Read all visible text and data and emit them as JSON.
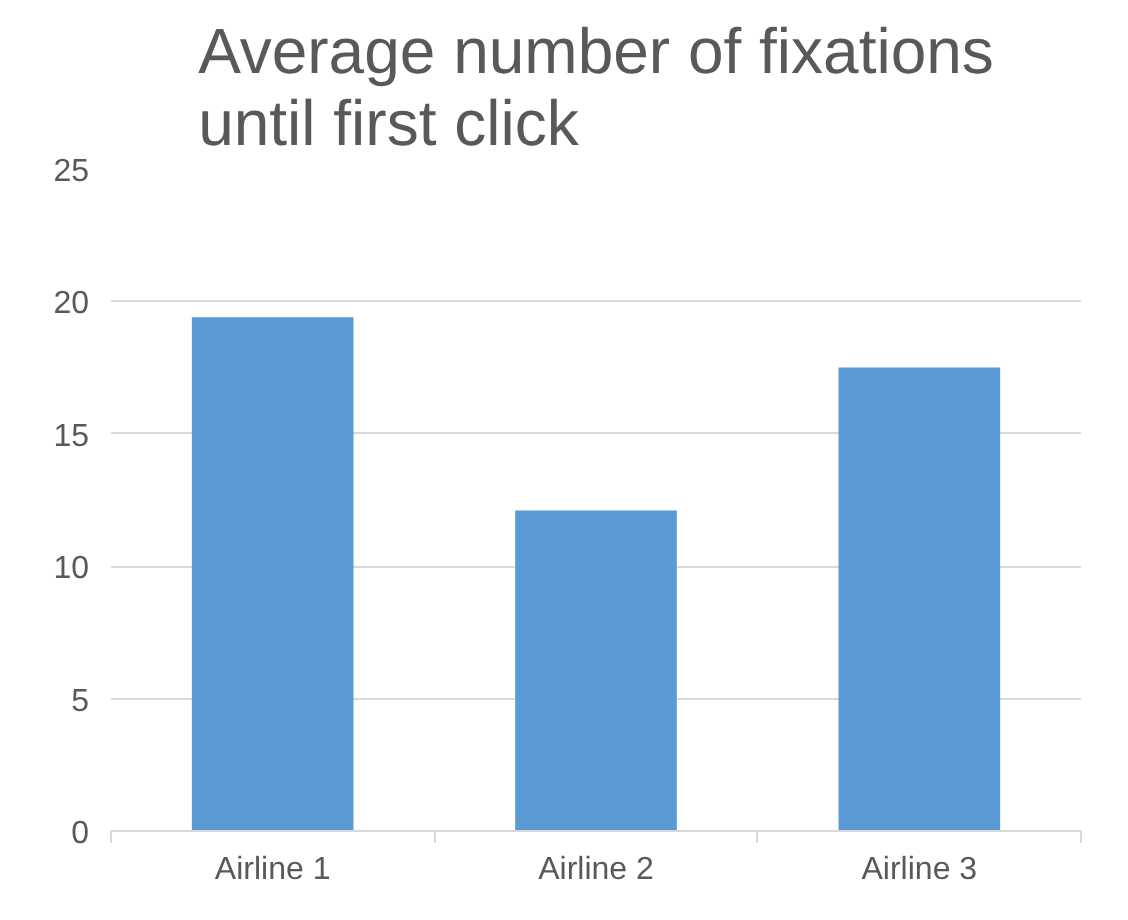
{
  "chart_data": {
    "type": "bar",
    "title": "Average number of fixations until first click",
    "categories": [
      "Airline 1",
      "Airline 2",
      "Airline 3"
    ],
    "values": [
      19.4,
      12.1,
      17.5
    ],
    "color": "#5b9bd5",
    "ylim": [
      0,
      25
    ],
    "yticks": [
      0,
      5,
      10,
      15,
      20,
      25
    ],
    "grid": "y"
  }
}
